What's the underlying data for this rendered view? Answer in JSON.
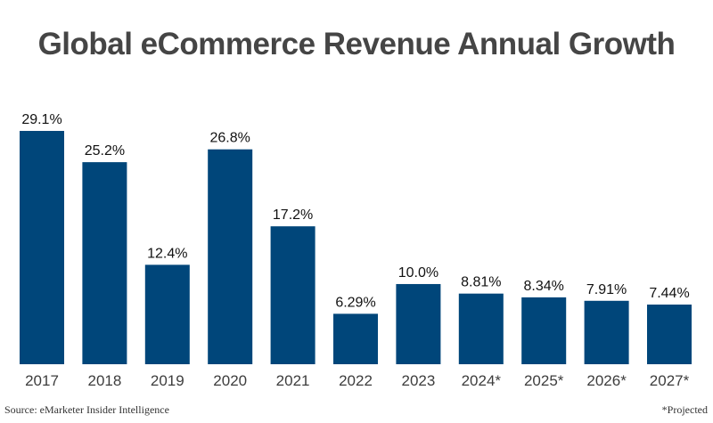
{
  "chart_data": {
    "type": "bar",
    "title": "Global eCommerce Revenue Annual Growth",
    "categories": [
      "2017",
      "2018",
      "2019",
      "2020",
      "2021",
      "2022",
      "2023",
      "2024*",
      "2025*",
      "2026*",
      "2027*"
    ],
    "values": [
      29.1,
      25.2,
      12.4,
      26.8,
      17.2,
      6.29,
      10.0,
      8.81,
      8.34,
      7.91,
      7.44
    ],
    "labels": [
      "29.1%",
      "25.2%",
      "12.4%",
      "26.8%",
      "17.2%",
      "6.29%",
      "10.0%",
      "8.81%",
      "8.34%",
      "7.91%",
      "7.44%"
    ],
    "xlabel": "",
    "ylabel": "",
    "ylim": [
      0,
      29.1
    ],
    "grid": false,
    "bar_color": "#00467A",
    "source": "Source: eMarketer Insider Intelligence",
    "note": "*Projected"
  }
}
